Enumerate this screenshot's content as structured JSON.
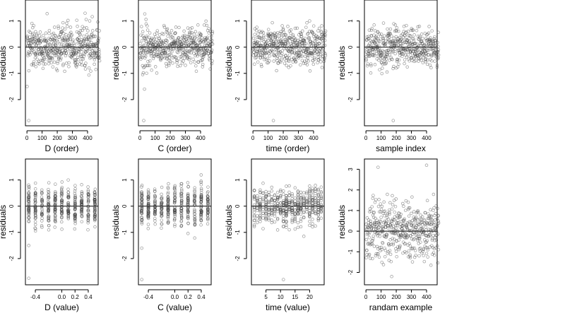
{
  "chart_data": [
    {
      "type": "scatter",
      "xlabel": "D (order)",
      "ylabel": "residuals",
      "ylim": [
        -3,
        1.8
      ],
      "xlim": [
        -10,
        470
      ],
      "xticks": [
        "0",
        "100",
        "200",
        "300",
        "400"
      ],
      "yticks": [
        "-2",
        "-1",
        "0",
        "1"
      ],
      "reference_line_y": 0,
      "points": {
        "n": 480,
        "x": "order index 1-480",
        "y_range": [
          -2.8,
          1.6
        ],
        "note_outliers": [
          [
            1,
            -1.5
          ],
          [
            12,
            -2.8
          ]
        ]
      }
    },
    {
      "type": "scatter",
      "xlabel": "C (order)",
      "ylabel": "residuals",
      "ylim": [
        -3,
        1.8
      ],
      "xlim": [
        -10,
        470
      ],
      "xticks": [
        "0",
        "100",
        "200",
        "300",
        "400"
      ],
      "yticks": [
        "-2",
        "-1",
        "0",
        "1"
      ],
      "reference_line_y": 0,
      "points": {
        "n": 480,
        "x": "order index 1-480",
        "y_range": [
          -2.8,
          1.6
        ],
        "note_outliers": [
          [
            25,
            -2.8
          ],
          [
            30,
            -1.6
          ]
        ]
      }
    },
    {
      "type": "scatter",
      "xlabel": "time (order)",
      "ylabel": "residuals",
      "ylim": [
        -3,
        1.8
      ],
      "xlim": [
        -10,
        470
      ],
      "xticks": [
        "0",
        "100",
        "200",
        "300",
        "400"
      ],
      "yticks": [
        "-2",
        "-1",
        "0",
        "1"
      ],
      "reference_line_y": 0,
      "points": {
        "n": 480,
        "x": "order index 1-480",
        "y_range": [
          -2.8,
          1.6
        ],
        "note_outliers": [
          [
            135,
            -2.8
          ]
        ]
      }
    },
    {
      "type": "scatter",
      "xlabel": "sample index",
      "ylabel": "residuals",
      "ylim": [
        -3,
        1.8
      ],
      "xlim": [
        -10,
        470
      ],
      "xticks": [
        "0",
        "100",
        "200",
        "300",
        "400"
      ],
      "yticks": [
        "-2",
        "-1",
        "0",
        "1"
      ],
      "reference_line_y": 0,
      "points": {
        "n": 480,
        "x": "order index 1-480",
        "y_range": [
          -2.8,
          1.6
        ],
        "note_outliers": [
          [
            180,
            -2.8
          ]
        ]
      }
    },
    {
      "type": "scatter",
      "xlabel": "D (value)",
      "ylabel": "residuals",
      "ylim": [
        -3,
        1.8
      ],
      "xlim": [
        -0.55,
        0.55
      ],
      "xticks": [
        "-0.4",
        "0.0",
        "0.2",
        "0.4"
      ],
      "xtick_values": [
        -0.4,
        0.0,
        0.2,
        0.4
      ],
      "yticks": [
        "-2",
        "-1",
        "0",
        "1"
      ],
      "reference_line_y": 0,
      "points": {
        "n": 480,
        "x_levels": [
          -0.5,
          -0.4,
          -0.3,
          -0.2,
          -0.1,
          0.0,
          0.1,
          0.2,
          0.3,
          0.4,
          0.5
        ],
        "y_range": [
          -2.8,
          1.6
        ]
      }
    },
    {
      "type": "scatter",
      "xlabel": "C (value)",
      "ylabel": "residuals",
      "ylim": [
        -3,
        1.8
      ],
      "xlim": [
        -0.55,
        0.55
      ],
      "xticks": [
        "-0.4",
        "0.0",
        "0.2",
        "0.4"
      ],
      "xtick_values": [
        -0.4,
        0.0,
        0.2,
        0.4
      ],
      "yticks": [
        "-2",
        "-1",
        "0",
        "1"
      ],
      "reference_line_y": 0,
      "points": {
        "n": 480,
        "x_levels": [
          -0.5,
          -0.4,
          -0.3,
          -0.2,
          -0.1,
          0.0,
          0.1,
          0.2,
          0.3,
          0.4,
          0.5
        ],
        "y_range": [
          -2.8,
          1.6
        ]
      }
    },
    {
      "type": "scatter",
      "xlabel": "time (value)",
      "ylabel": "residuals",
      "ylim": [
        -3,
        1.8
      ],
      "xlim": [
        0,
        25
      ],
      "xticks": [
        "5",
        "10",
        "15",
        "20"
      ],
      "xtick_values": [
        5,
        10,
        15,
        20
      ],
      "yticks": [
        "-2",
        "-1",
        "0",
        "1"
      ],
      "reference_line_y": 0,
      "points": {
        "n": 480,
        "x_levels": "1-24 (integers)",
        "y_range": [
          -2.8,
          1.6
        ]
      }
    },
    {
      "type": "scatter",
      "xlabel": "randam example",
      "ylabel": "residuals",
      "ylim": [
        -2.6,
        3.5
      ],
      "xlim": [
        -10,
        470
      ],
      "xticks": [
        "0",
        "100",
        "200",
        "300",
        "400"
      ],
      "yticks": [
        "-2",
        "-1",
        "0",
        "1",
        "2",
        "3"
      ],
      "reference_line_y": 0,
      "points": {
        "n": 480,
        "x": "index 1-480",
        "y_range": [
          -2.2,
          3.2
        ]
      }
    }
  ]
}
